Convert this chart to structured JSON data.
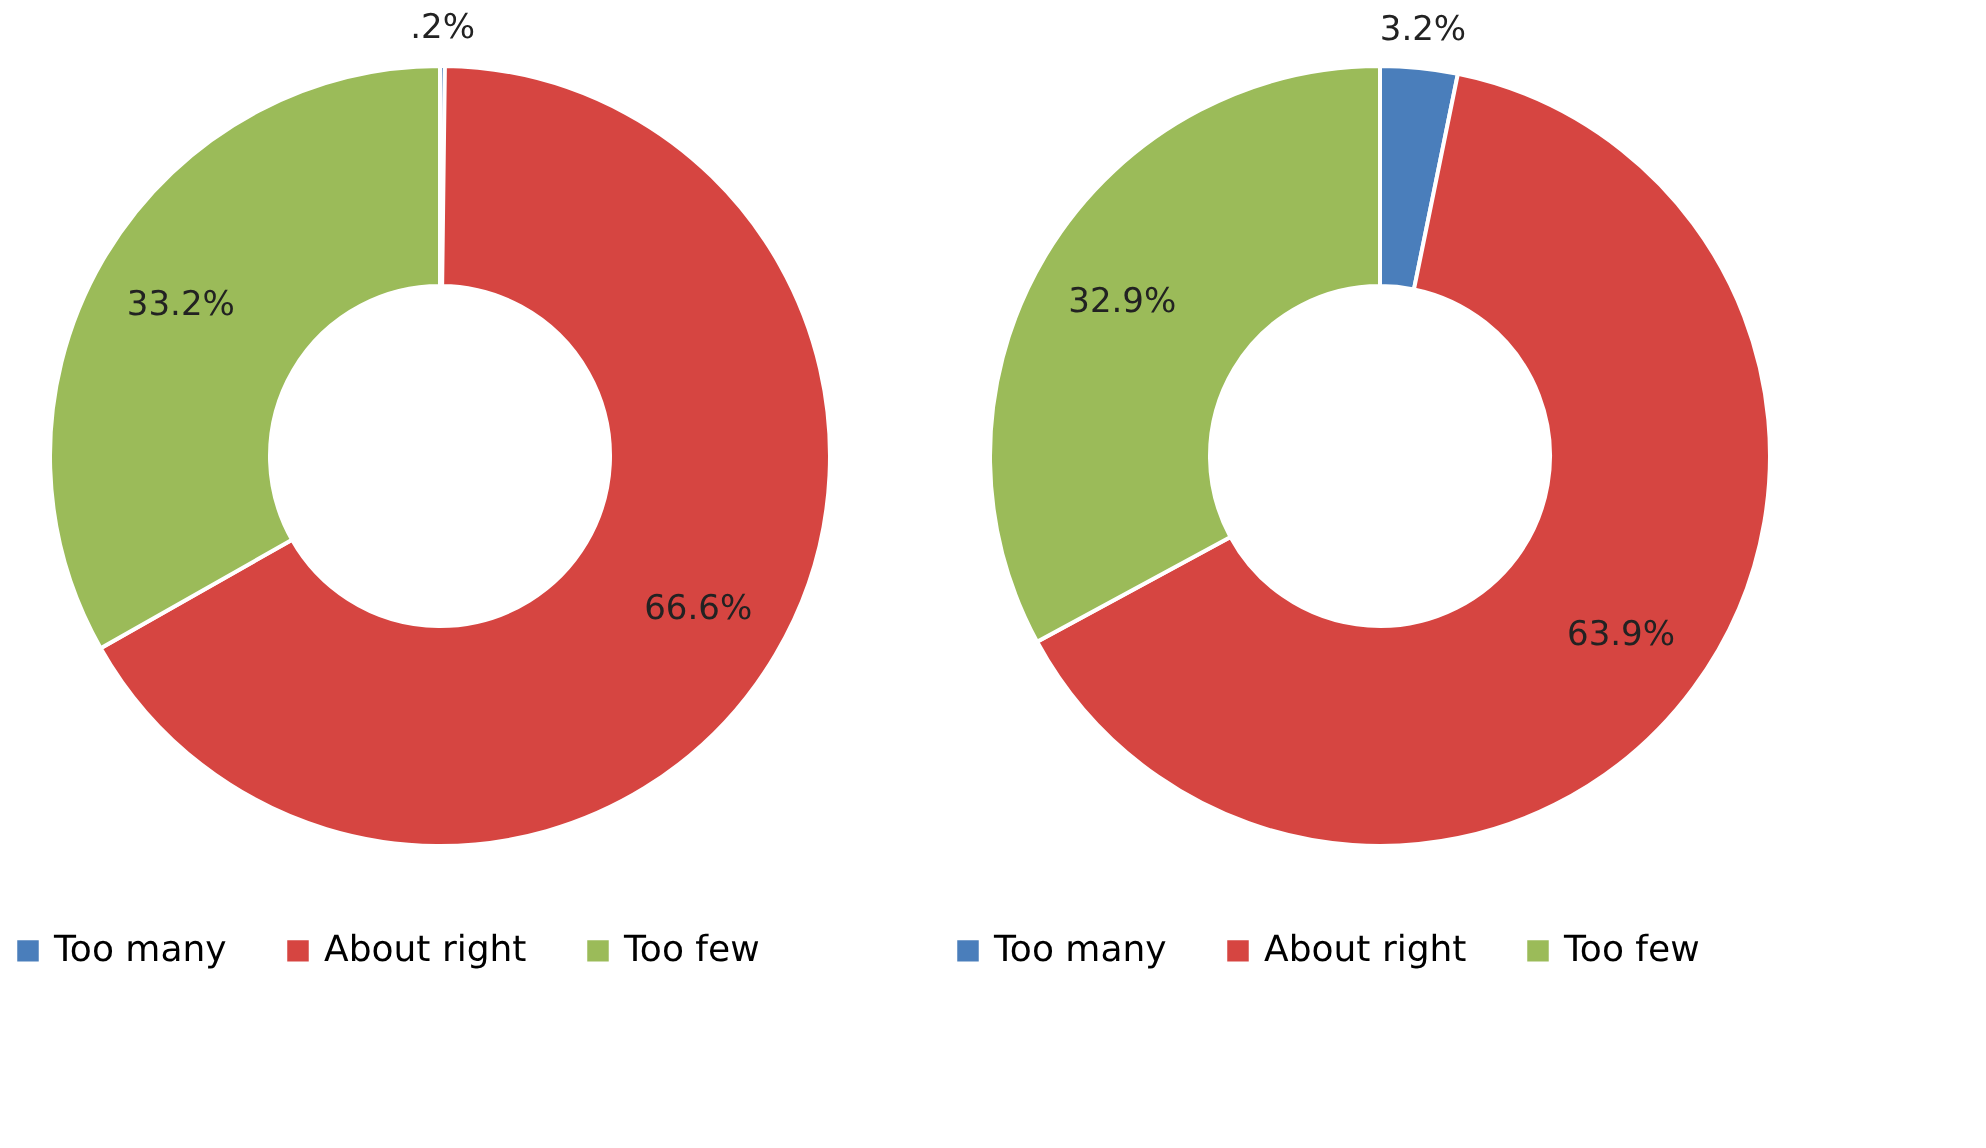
{
  "chart_data": [
    {
      "type": "donut",
      "categories": [
        "Too many",
        "About right",
        "Too few"
      ],
      "values": [
        0.2,
        66.6,
        33.2
      ],
      "colors": [
        "#4a7ebb",
        "#d64541",
        "#9bbb59"
      ],
      "value_labels": [
        ".2%",
        "66.6%",
        "33.2%"
      ],
      "legend": "bottom"
    },
    {
      "type": "donut",
      "categories": [
        "Too many",
        "About right",
        "Too few"
      ],
      "values": [
        3.2,
        63.9,
        32.9
      ],
      "colors": [
        "#4a7ebb",
        "#d64541",
        "#9bbb59"
      ],
      "value_labels": [
        "3.2%",
        "63.9%",
        "32.9%"
      ],
      "legend": "bottom"
    }
  ]
}
